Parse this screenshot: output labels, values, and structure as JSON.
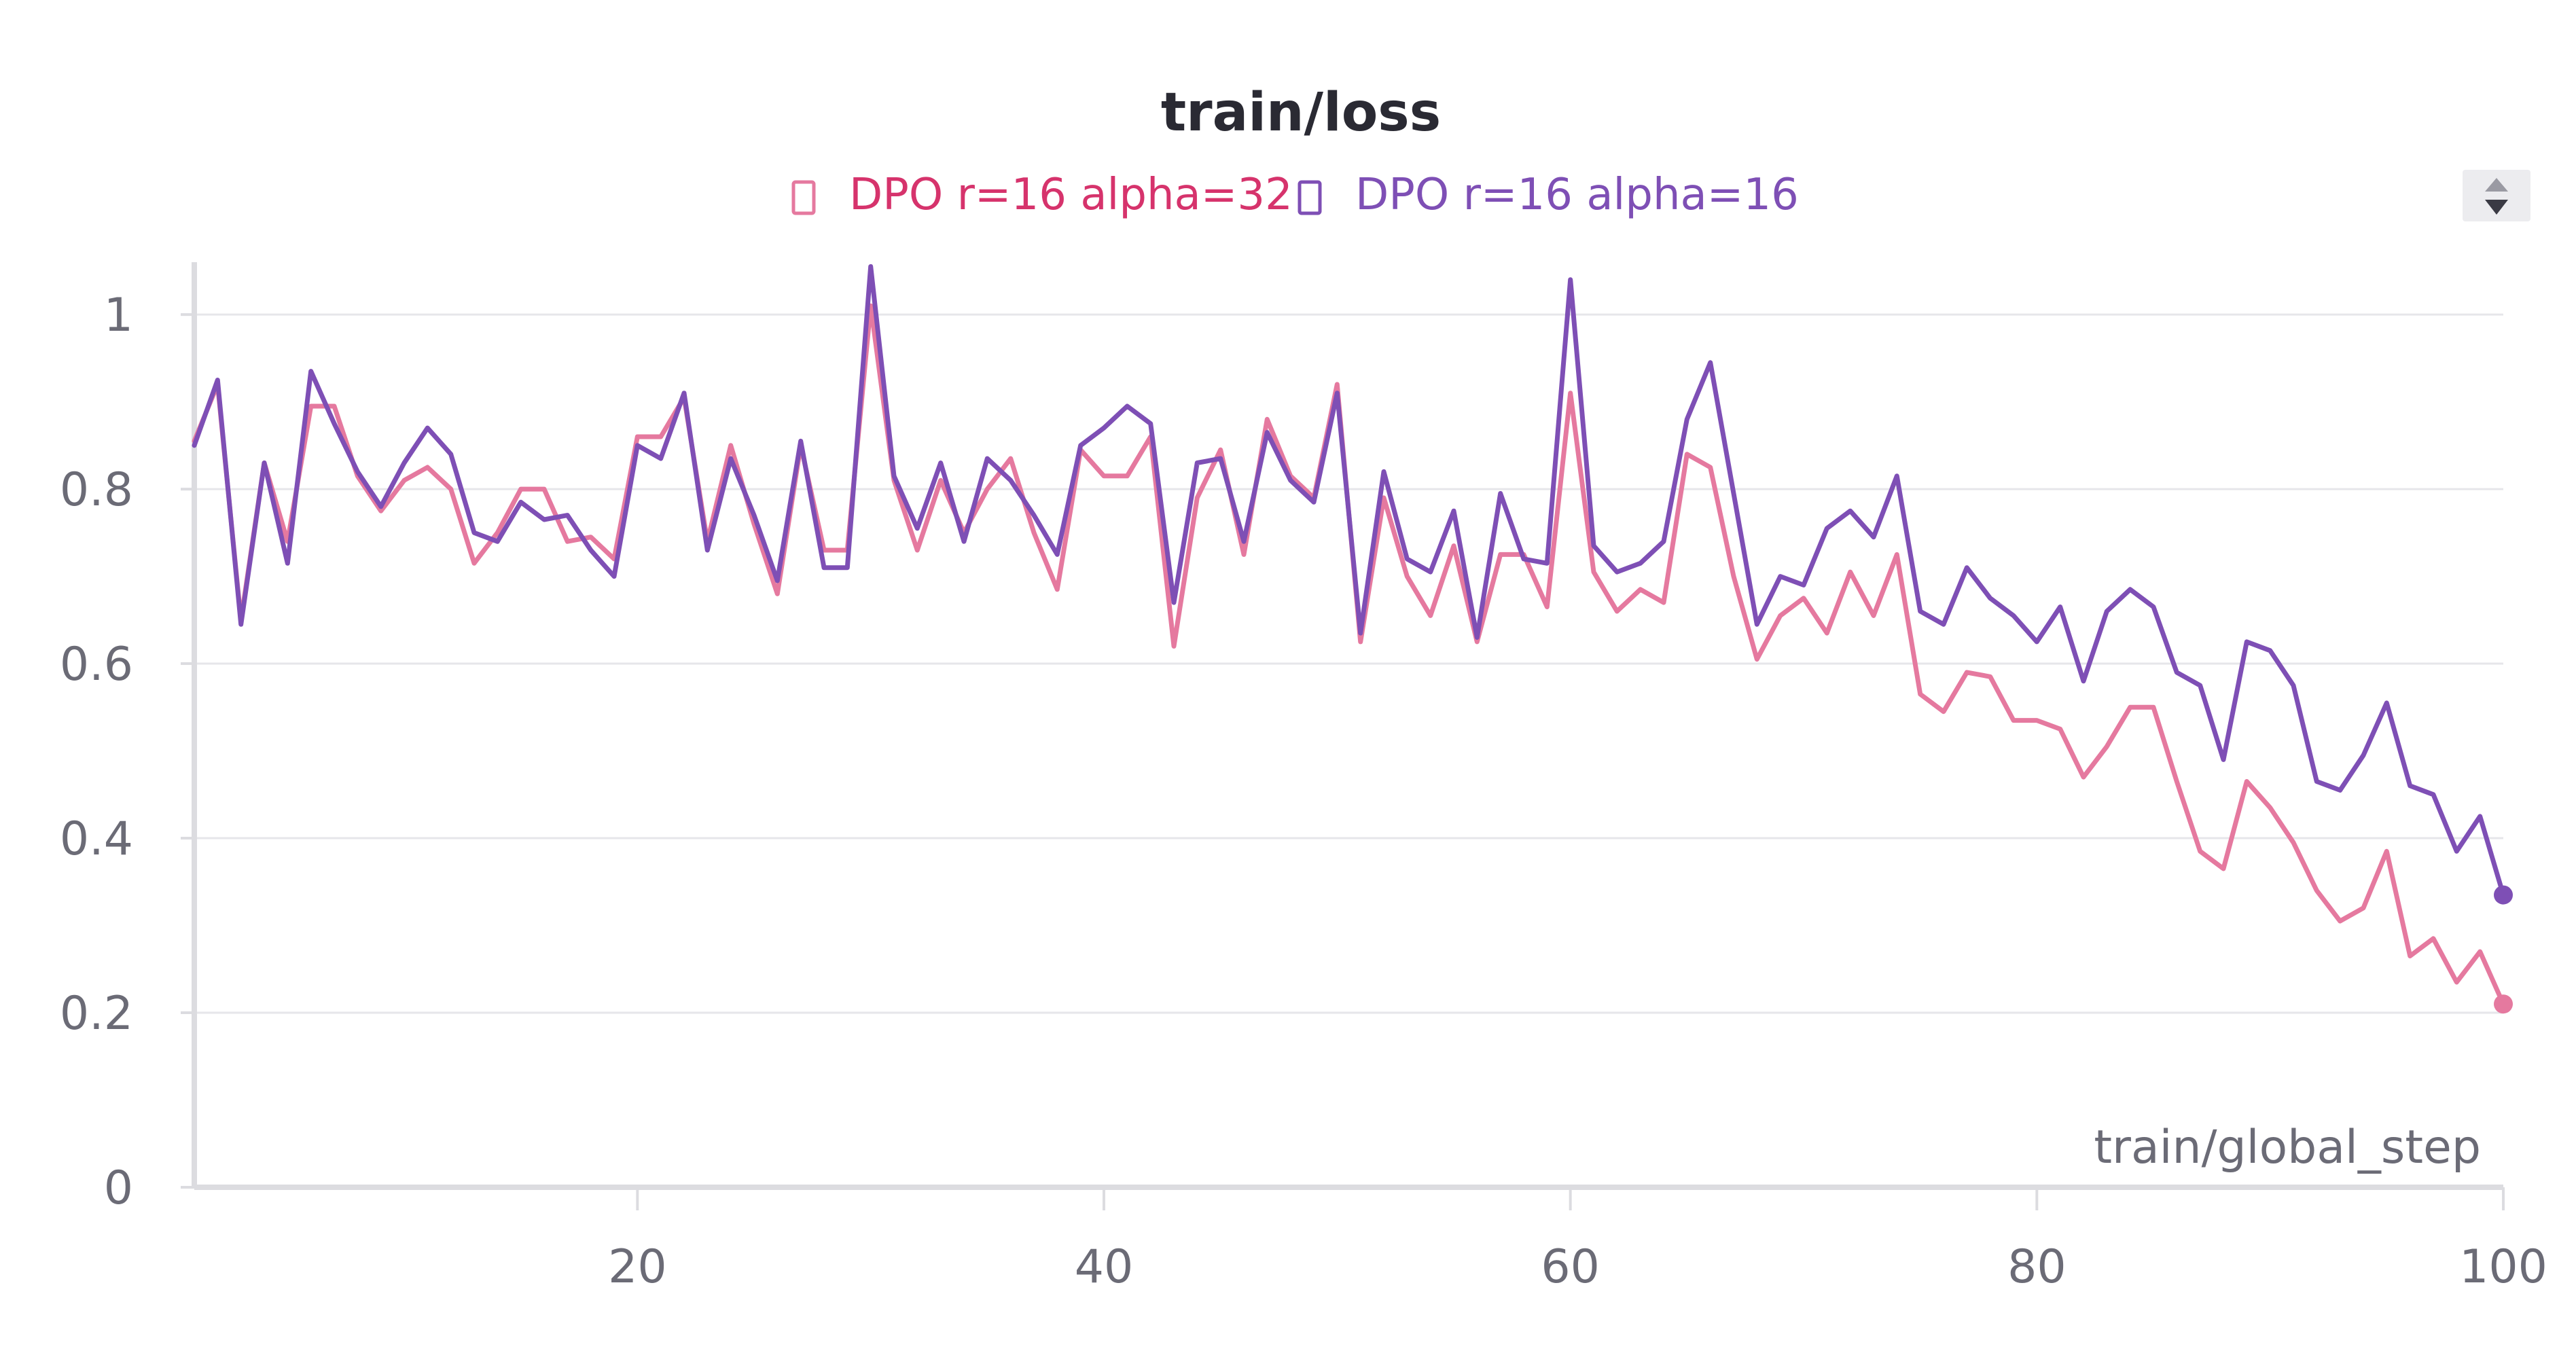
{
  "chart_data": {
    "type": "line",
    "title": "train/loss",
    "xlabel": "train/global_step",
    "ylabel": "",
    "xlim": [
      1,
      100
    ],
    "ylim": [
      0,
      1.06
    ],
    "x_ticks": [
      20,
      40,
      60,
      80,
      100
    ],
    "x_tick_labels": [
      "20",
      "40",
      "60",
      "80",
      "100"
    ],
    "y_ticks": [
      0,
      0.2,
      0.4,
      0.6,
      0.8,
      1
    ],
    "y_tick_labels": [
      "0",
      "0.2",
      "0.4",
      "0.6",
      "0.8",
      "1"
    ],
    "grid": true,
    "legend_position": "top-center",
    "series": [
      {
        "name": "DPO r=16 alpha=32",
        "color": "#e5799f",
        "legend_text_color": "#d6336c",
        "x": [
          1,
          2,
          3,
          4,
          5,
          6,
          7,
          8,
          9,
          10,
          11,
          12,
          13,
          14,
          15,
          16,
          17,
          18,
          19,
          20,
          21,
          22,
          23,
          24,
          25,
          26,
          27,
          28,
          29,
          30,
          31,
          32,
          33,
          34,
          35,
          36,
          37,
          38,
          39,
          40,
          41,
          42,
          43,
          44,
          45,
          46,
          47,
          48,
          49,
          50,
          51,
          52,
          53,
          54,
          55,
          56,
          57,
          58,
          59,
          60,
          61,
          62,
          63,
          64,
          65,
          66,
          67,
          68,
          69,
          70,
          71,
          72,
          73,
          74,
          75,
          76,
          77,
          78,
          79,
          80,
          81,
          82,
          83,
          84,
          85,
          86,
          87,
          88,
          89,
          90,
          91,
          92,
          93,
          94,
          95,
          96,
          97,
          98,
          99,
          100
        ],
        "y": [
          0.855,
          0.92,
          0.65,
          0.83,
          0.74,
          0.895,
          0.895,
          0.815,
          0.775,
          0.81,
          0.825,
          0.8,
          0.715,
          0.75,
          0.8,
          0.8,
          0.74,
          0.745,
          0.72,
          0.86,
          0.86,
          0.905,
          0.74,
          0.85,
          0.76,
          0.68,
          0.85,
          0.73,
          0.73,
          1.01,
          0.81,
          0.73,
          0.81,
          0.75,
          0.8,
          0.835,
          0.75,
          0.685,
          0.845,
          0.815,
          0.815,
          0.86,
          0.62,
          0.79,
          0.845,
          0.725,
          0.88,
          0.815,
          0.79,
          0.92,
          0.625,
          0.79,
          0.7,
          0.655,
          0.735,
          0.625,
          0.725,
          0.725,
          0.665,
          0.91,
          0.705,
          0.66,
          0.685,
          0.67,
          0.84,
          0.825,
          0.7,
          0.605,
          0.655,
          0.675,
          0.635,
          0.705,
          0.655,
          0.725,
          0.565,
          0.545,
          0.59,
          0.585,
          0.535,
          0.535,
          0.525,
          0.47,
          0.505,
          0.55,
          0.55,
          0.465,
          0.385,
          0.365,
          0.465,
          0.435,
          0.395,
          0.34,
          0.305,
          0.32,
          0.385,
          0.265,
          0.285,
          0.235,
          0.27,
          0.21
        ]
      },
      {
        "name": "DPO r=16 alpha=16",
        "color": "#7e4fb5",
        "legend_text_color": "#7e4fb5",
        "x": [
          1,
          2,
          3,
          4,
          5,
          6,
          7,
          8,
          9,
          10,
          11,
          12,
          13,
          14,
          15,
          16,
          17,
          18,
          19,
          20,
          21,
          22,
          23,
          24,
          25,
          26,
          27,
          28,
          29,
          30,
          31,
          32,
          33,
          34,
          35,
          36,
          37,
          38,
          39,
          40,
          41,
          42,
          43,
          44,
          45,
          46,
          47,
          48,
          49,
          50,
          51,
          52,
          53,
          54,
          55,
          56,
          57,
          58,
          59,
          60,
          61,
          62,
          63,
          64,
          65,
          66,
          67,
          68,
          69,
          70,
          71,
          72,
          73,
          74,
          75,
          76,
          77,
          78,
          79,
          80,
          81,
          82,
          83,
          84,
          85,
          86,
          87,
          88,
          89,
          90,
          91,
          92,
          93,
          94,
          95,
          96,
          97,
          98,
          99,
          100
        ],
        "y": [
          0.85,
          0.925,
          0.645,
          0.83,
          0.715,
          0.935,
          0.875,
          0.82,
          0.78,
          0.83,
          0.87,
          0.84,
          0.75,
          0.74,
          0.785,
          0.765,
          0.77,
          0.73,
          0.7,
          0.85,
          0.835,
          0.91,
          0.73,
          0.835,
          0.77,
          0.695,
          0.855,
          0.71,
          0.71,
          1.055,
          0.815,
          0.755,
          0.83,
          0.74,
          0.835,
          0.81,
          0.77,
          0.725,
          0.85,
          0.87,
          0.895,
          0.875,
          0.67,
          0.83,
          0.835,
          0.74,
          0.865,
          0.81,
          0.785,
          0.91,
          0.635,
          0.82,
          0.72,
          0.705,
          0.775,
          0.63,
          0.795,
          0.72,
          0.715,
          1.04,
          0.735,
          0.705,
          0.715,
          0.74,
          0.88,
          0.945,
          0.795,
          0.645,
          0.7,
          0.69,
          0.755,
          0.775,
          0.745,
          0.815,
          0.66,
          0.645,
          0.71,
          0.675,
          0.655,
          0.625,
          0.665,
          0.58,
          0.66,
          0.685,
          0.665,
          0.59,
          0.575,
          0.49,
          0.625,
          0.615,
          0.575,
          0.465,
          0.455,
          0.495,
          0.555,
          0.46,
          0.45,
          0.385,
          0.425,
          0.335
        ]
      }
    ]
  },
  "legend": {
    "items": [
      {
        "label": "DPO r=16 alpha=32",
        "color": "#d6336c",
        "icon": "square-outline-icon"
      },
      {
        "label": "DPO r=16 alpha=16",
        "color": "#7e4fb5",
        "icon": "square-outline-icon"
      }
    ],
    "scroll_control_icon": "up-down-arrows-icon"
  }
}
